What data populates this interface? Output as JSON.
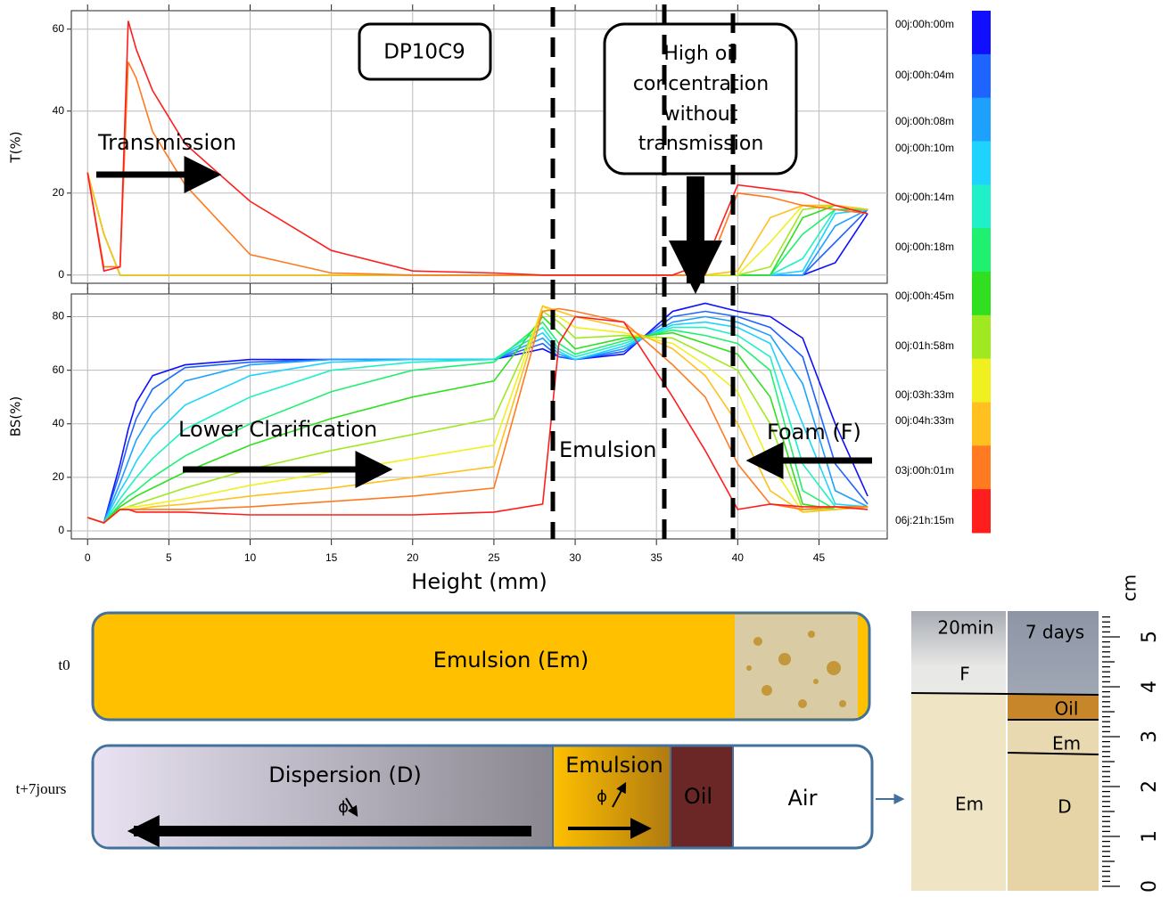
{
  "chart_data": [
    {
      "type": "line",
      "y_label": "T(%)",
      "xlim": [
        -1,
        49.2
      ],
      "ylim": [
        -2,
        64.5
      ],
      "yticks": [
        0,
        20,
        40,
        60
      ],
      "xticks": [
        0,
        5,
        10,
        15,
        20,
        25,
        30,
        35,
        40,
        45
      ],
      "grid": true,
      "annotations": {
        "sample": "DP10C9",
        "oil_note": [
          "High oil",
          "concentration",
          "without",
          "transmission"
        ],
        "arrow_label": "Transmission"
      },
      "x": [
        0,
        1,
        2,
        2.5,
        3,
        4,
        6,
        10,
        15,
        20,
        25,
        28,
        29,
        30,
        33,
        36,
        38,
        40,
        42,
        44,
        46,
        48
      ],
      "series": [
        {
          "name": "00j:00h:00m",
          "color": "#1010ff",
          "values": [
            25,
            10,
            0,
            0,
            0,
            0,
            0,
            0,
            0,
            0,
            0,
            0,
            0,
            0,
            0,
            0,
            0,
            0,
            0,
            0,
            3,
            15
          ]
        },
        {
          "name": "00j:00h:04m",
          "color": "#1e64ff",
          "values": [
            25,
            10,
            0,
            0,
            0,
            0,
            0,
            0,
            0,
            0,
            0,
            0,
            0,
            0,
            0,
            0,
            0,
            0,
            0,
            0,
            8,
            16
          ]
        },
        {
          "name": "00j:00h:08m",
          "color": "#1ea0ff",
          "values": [
            25,
            10,
            0,
            0,
            0,
            0,
            0,
            0,
            0,
            0,
            0,
            0,
            0,
            0,
            0,
            0,
            0,
            0,
            0,
            0,
            12,
            16
          ]
        },
        {
          "name": "00j:00h:10m",
          "color": "#1ed4ff",
          "values": [
            25,
            10,
            0,
            0,
            0,
            0,
            0,
            0,
            0,
            0,
            0,
            0,
            0,
            0,
            0,
            0,
            0,
            0,
            0,
            1,
            15,
            16
          ]
        },
        {
          "name": "00j:00h:14m",
          "color": "#20f0c8",
          "values": [
            25,
            10,
            0,
            0,
            0,
            0,
            0,
            0,
            0,
            0,
            0,
            0,
            0,
            0,
            0,
            0,
            0,
            0,
            0,
            4,
            16,
            16
          ]
        },
        {
          "name": "00j:00h:18m",
          "color": "#20f070",
          "values": [
            25,
            10,
            0,
            0,
            0,
            0,
            0,
            0,
            0,
            0,
            0,
            0,
            0,
            0,
            0,
            0,
            0,
            0,
            0,
            10,
            16,
            16
          ]
        },
        {
          "name": "00j:00h:45m",
          "color": "#30e020",
          "values": [
            25,
            10,
            0,
            0,
            0,
            0,
            0,
            0,
            0,
            0,
            0,
            0,
            0,
            0,
            0,
            0,
            0,
            0,
            0,
            14,
            17,
            16
          ]
        },
        {
          "name": "00j:01h:58m",
          "color": "#a0e820",
          "values": [
            25,
            10,
            0,
            0,
            0,
            0,
            0,
            0,
            0,
            0,
            0,
            0,
            0,
            0,
            0,
            0,
            0,
            0,
            2,
            16,
            17,
            16
          ]
        },
        {
          "name": "00j:03h:33m",
          "color": "#f0f020",
          "values": [
            25,
            10,
            0,
            0,
            0,
            0,
            0,
            0,
            0,
            0,
            0,
            0,
            0,
            0,
            0,
            0,
            0,
            0,
            8,
            17,
            17,
            16
          ]
        },
        {
          "name": "00j:04h:33m",
          "color": "#ffc020",
          "values": [
            25,
            10,
            0,
            0,
            0,
            0,
            0,
            0,
            0,
            0,
            0,
            0,
            0,
            0,
            0,
            0,
            0,
            1,
            14,
            17,
            17,
            16
          ]
        },
        {
          "name": "03j:00h:01m",
          "color": "#ff7a20",
          "values": [
            25,
            2,
            2,
            52,
            48,
            35,
            22,
            5,
            0.5,
            0,
            0,
            0,
            0,
            0,
            0,
            0,
            0,
            20,
            19,
            17,
            16,
            15
          ]
        },
        {
          "name": "06j:21h:15m",
          "color": "#ff1e1e",
          "values": [
            25,
            1,
            2,
            62,
            55,
            45,
            32,
            18,
            6,
            1,
            0.5,
            0,
            0,
            0,
            0,
            0,
            3,
            22,
            21,
            20,
            17,
            15
          ]
        }
      ]
    },
    {
      "type": "line",
      "y_label": "BS(%)",
      "x_label": "Height (mm)",
      "xlim": [
        -1,
        49.2
      ],
      "ylim": [
        -3,
        88.5
      ],
      "yticks": [
        0,
        20,
        40,
        60,
        80
      ],
      "xticks": [
        0,
        5,
        10,
        15,
        20,
        25,
        30,
        35,
        40,
        45
      ],
      "grid": true,
      "annotations": {
        "lower": "Lower Clarification",
        "emulsion": "Emulsion",
        "foam": "Foam (F)"
      },
      "x": [
        0,
        1,
        2,
        2.5,
        3,
        4,
        6,
        10,
        15,
        20,
        25,
        28,
        29,
        30,
        33,
        36,
        38,
        40,
        42,
        44,
        46,
        48
      ],
      "series": [
        {
          "name": "00j:00h:00m",
          "color": "#1010ff",
          "values": [
            5,
            3,
            25,
            38,
            48,
            58,
            62,
            64,
            64,
            64,
            64,
            68,
            65,
            64,
            66,
            82,
            85,
            82,
            80,
            72,
            40,
            13
          ]
        },
        {
          "name": "00j:00h:04m",
          "color": "#1e64ff",
          "values": [
            5,
            3,
            22,
            33,
            42,
            53,
            61,
            63,
            64,
            64,
            64,
            70,
            65,
            64,
            67,
            80,
            82,
            80,
            76,
            65,
            25,
            10
          ]
        },
        {
          "name": "00j:00h:08m",
          "color": "#1ea0ff",
          "values": [
            5,
            3,
            18,
            26,
            34,
            44,
            56,
            62,
            64,
            64,
            64,
            72,
            66,
            64,
            68,
            78,
            80,
            78,
            73,
            55,
            15,
            9
          ]
        },
        {
          "name": "00j:00h:10m",
          "color": "#1ed4ff",
          "values": [
            5,
            3,
            15,
            20,
            26,
            35,
            47,
            58,
            63,
            64,
            64,
            74,
            67,
            64,
            69,
            77,
            78,
            76,
            70,
            40,
            10,
            9
          ]
        },
        {
          "name": "00j:00h:14m",
          "color": "#20f0c8",
          "values": [
            5,
            3,
            12,
            16,
            20,
            27,
            38,
            50,
            60,
            63,
            64,
            76,
            68,
            65,
            70,
            76,
            76,
            73,
            65,
            25,
            9,
            9
          ]
        },
        {
          "name": "00j:00h:18m",
          "color": "#20f070",
          "values": [
            5,
            3,
            10,
            13,
            15,
            20,
            28,
            40,
            52,
            60,
            63,
            78,
            70,
            66,
            71,
            75,
            73,
            70,
            60,
            15,
            8,
            9
          ]
        },
        {
          "name": "00j:00h:45m",
          "color": "#30e020",
          "values": [
            5,
            3,
            9,
            11,
            13,
            16,
            22,
            32,
            42,
            50,
            56,
            80,
            74,
            68,
            72,
            74,
            70,
            66,
            50,
            10,
            8,
            9
          ]
        },
        {
          "name": "00j:01h:58m",
          "color": "#a0e820",
          "values": [
            5,
            3,
            8,
            9,
            10,
            12,
            16,
            23,
            30,
            36,
            42,
            82,
            78,
            72,
            73,
            72,
            66,
            60,
            40,
            8,
            8,
            9
          ]
        },
        {
          "name": "00j:03h:33m",
          "color": "#f0f020",
          "values": [
            5,
            3,
            8,
            9,
            9,
            10,
            12,
            17,
            22,
            27,
            32,
            84,
            80,
            76,
            74,
            70,
            62,
            52,
            25,
            7,
            8,
            9
          ]
        },
        {
          "name": "00j:04h:33m",
          "color": "#ffc020",
          "values": [
            5,
            3,
            8,
            8,
            8,
            9,
            10,
            13,
            16,
            20,
            24,
            84,
            82,
            80,
            76,
            68,
            58,
            40,
            15,
            7,
            8,
            9
          ]
        },
        {
          "name": "03j:00h:01m",
          "color": "#ff7a20",
          "values": [
            5,
            3,
            8,
            8,
            8,
            8,
            8,
            9,
            11,
            13,
            16,
            82,
            83,
            82,
            78,
            62,
            50,
            25,
            10,
            8,
            9,
            9
          ]
        },
        {
          "name": "06j:21h:15m",
          "color": "#ff1e1e",
          "values": [
            5,
            3,
            8,
            8,
            7,
            7,
            7,
            6,
            6,
            6,
            7,
            10,
            70,
            80,
            78,
            50,
            30,
            8,
            10,
            9,
            9,
            8
          ]
        }
      ]
    }
  ],
  "diagram": {
    "t0": {
      "label": "t0",
      "emulsion": "Emulsion (Em)"
    },
    "t7": {
      "label": "t+7jours",
      "dispersion": "Dispersion (D)",
      "phi_d": "ϕ",
      "emulsion": "Emulsion",
      "phi_e": "ϕ",
      "oil": "Oil",
      "air": "Air"
    }
  },
  "photo": {
    "left_title": "20min",
    "right_title": "7 days",
    "left_layers": [
      "F",
      "Em"
    ],
    "right_layers": [
      "Oil",
      "Em",
      "D"
    ],
    "ruler": {
      "unit": "cm",
      "ticks": [
        0,
        1,
        2,
        3,
        4,
        5
      ]
    }
  }
}
